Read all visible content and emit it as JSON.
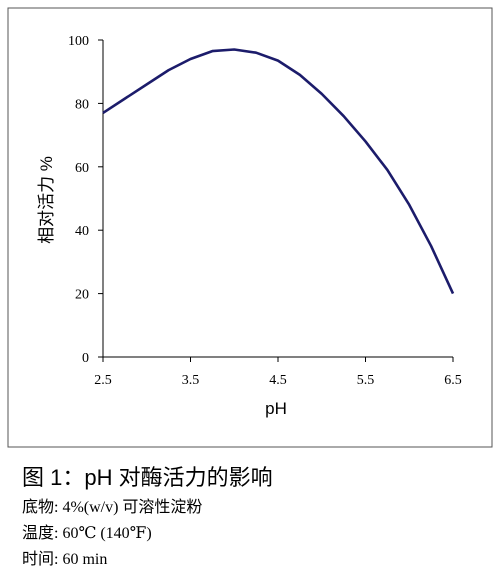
{
  "chart_data": {
    "type": "line",
    "xlabel": "pH",
    "ylabel": "相对活力 %",
    "x": [
      2.5,
      2.75,
      3.0,
      3.25,
      3.5,
      3.75,
      4.0,
      4.25,
      4.5,
      4.75,
      5.0,
      5.25,
      5.5,
      5.75,
      6.0,
      6.25,
      6.5
    ],
    "series": [
      {
        "color": "#1c1c6b",
        "values": [
          77,
          81.5,
          86,
          90.5,
          94,
          96.5,
          97,
          96,
          93.5,
          89,
          83,
          76,
          68,
          59,
          48,
          35,
          20
        ]
      }
    ],
    "xlim": [
      2.5,
      6.5
    ],
    "xticks": [
      2.5,
      3.5,
      4.5,
      5.5,
      6.5
    ],
    "ylim": [
      0,
      100
    ],
    "yticks": [
      0,
      20,
      40,
      60,
      80,
      100
    ],
    "caption": {
      "title": "图 1：pH 对酶活力的影响",
      "lines": [
        "底物: 4%(w/v) 可溶性淀粉",
        "温度: 60℃ (140℉)",
        "时间: 60 min"
      ]
    }
  }
}
